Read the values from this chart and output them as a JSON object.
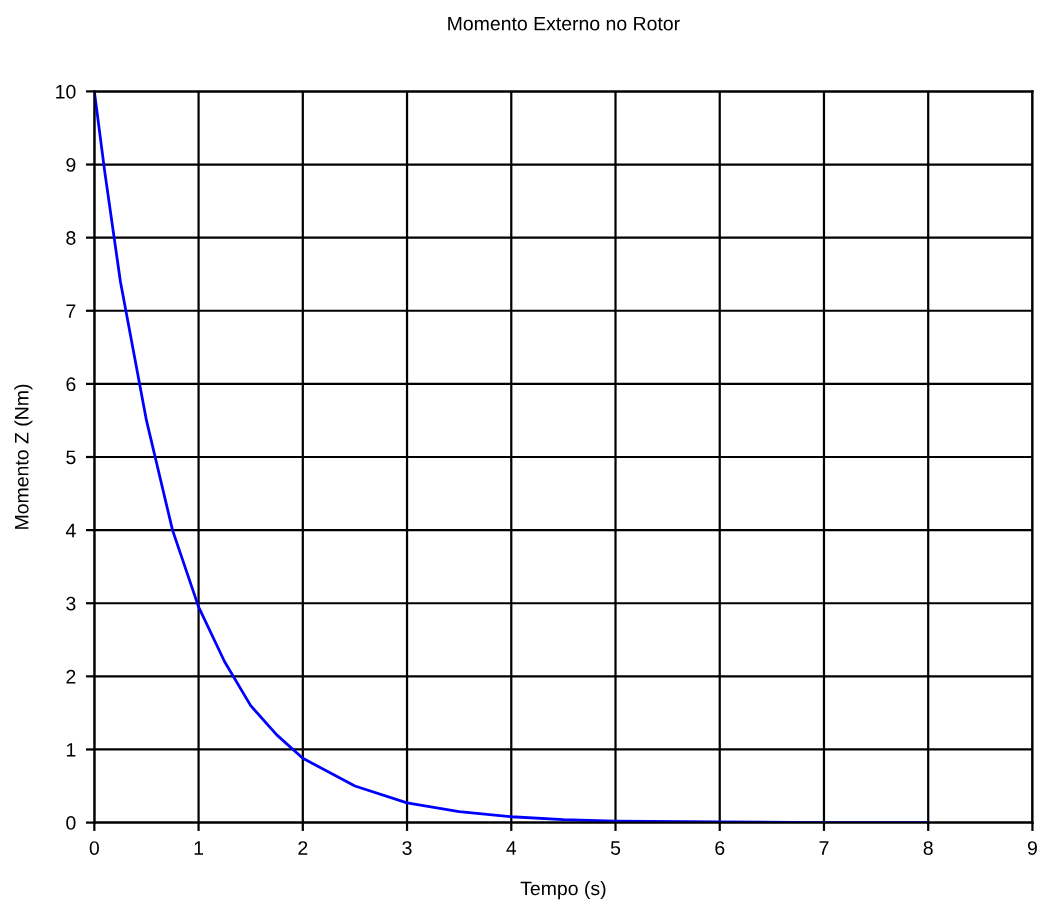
{
  "chart_data": {
    "type": "line",
    "title": "Momento Externo no Rotor",
    "xlabel": "Tempo (s)",
    "ylabel": "Momento Z (Nm)",
    "x": [
      0,
      0.1,
      0.25,
      0.5,
      0.75,
      1,
      1.25,
      1.5,
      1.75,
      2,
      2.5,
      3,
      3.5,
      4,
      4.5,
      5,
      6,
      7,
      8
    ],
    "series": [
      {
        "color": "#0000ff",
        "values": [
          10,
          8.9,
          7.4,
          5.5,
          4.0,
          2.95,
          2.2,
          1.6,
          1.2,
          0.88,
          0.5,
          0.27,
          0.15,
          0.08,
          0.04,
          0.02,
          0.01,
          0.0,
          0.0
        ]
      }
    ],
    "xlim": [
      0,
      9
    ],
    "ylim": [
      0,
      10
    ],
    "xticks": [
      0,
      1,
      2,
      3,
      4,
      5,
      6,
      7,
      8,
      9
    ],
    "yticks": [
      0,
      1,
      2,
      3,
      4,
      5,
      6,
      7,
      8,
      9,
      10
    ],
    "grid": true,
    "marker": "none",
    "line_style": "solid"
  }
}
